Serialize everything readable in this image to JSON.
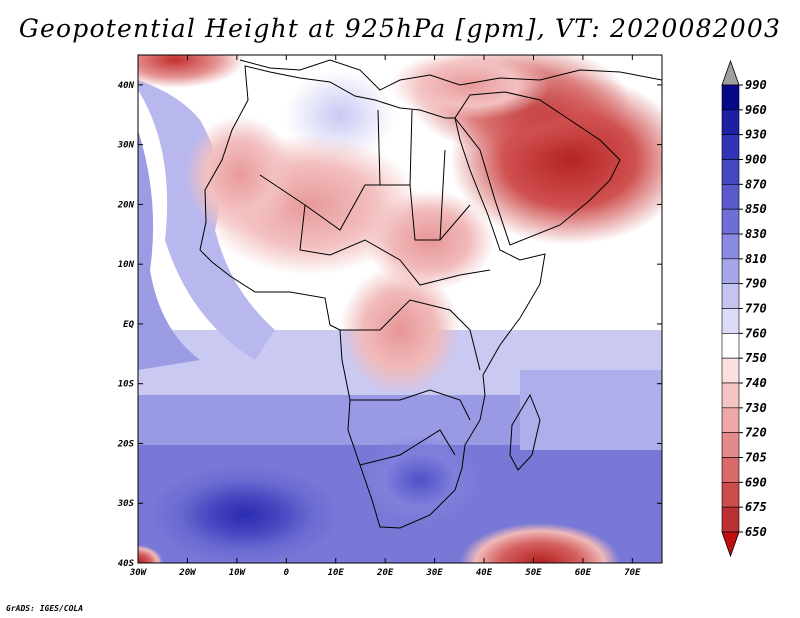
{
  "title": "Geopotential Height at 925hPa [gpm], VT: 2020082003",
  "credit": "GrADS: IGES/COLA",
  "map": {
    "lon_range": [
      -30,
      76
    ],
    "lat_range": [
      -40,
      45
    ],
    "lon_ticks": [
      {
        "value": -30,
        "label": "30W"
      },
      {
        "value": -20,
        "label": "20W"
      },
      {
        "value": -10,
        "label": "10W"
      },
      {
        "value": 0,
        "label": "0"
      },
      {
        "value": 10,
        "label": "10E"
      },
      {
        "value": 20,
        "label": "20E"
      },
      {
        "value": 30,
        "label": "30E"
      },
      {
        "value": 40,
        "label": "40E"
      },
      {
        "value": 50,
        "label": "50E"
      },
      {
        "value": 60,
        "label": "60E"
      },
      {
        "value": 70,
        "label": "70E"
      }
    ],
    "lat_ticks": [
      {
        "value": 40,
        "label": "40N"
      },
      {
        "value": 30,
        "label": "30N"
      },
      {
        "value": 20,
        "label": "20N"
      },
      {
        "value": 10,
        "label": "10N"
      },
      {
        "value": 0,
        "label": "EQ"
      },
      {
        "value": -10,
        "label": "10S"
      },
      {
        "value": -20,
        "label": "20S"
      },
      {
        "value": -30,
        "label": "30S"
      },
      {
        "value": -40,
        "label": "40S"
      }
    ]
  },
  "colorbar": {
    "levels": [
      "990",
      "960",
      "930",
      "900",
      "870",
      "850",
      "830",
      "810",
      "790",
      "770",
      "760",
      "750",
      "740",
      "730",
      "720",
      "705",
      "690",
      "675",
      "650"
    ],
    "colors": [
      "#08088a",
      "#1f1fa6",
      "#3333b8",
      "#4747c4",
      "#5a5acc",
      "#6e6ed6",
      "#8a8ae0",
      "#a6a6ea",
      "#c4c4f2",
      "#dcdcfa",
      "#ffffff",
      "#fbe0e0",
      "#f5c4c4",
      "#eea8a8",
      "#e48a8a",
      "#d86a6a",
      "#cc4c4c",
      "#bb3030",
      "#a81818"
    ],
    "top_arrow_color": "#a0a0a0",
    "bottom_arrow_color": "#c01010"
  }
}
